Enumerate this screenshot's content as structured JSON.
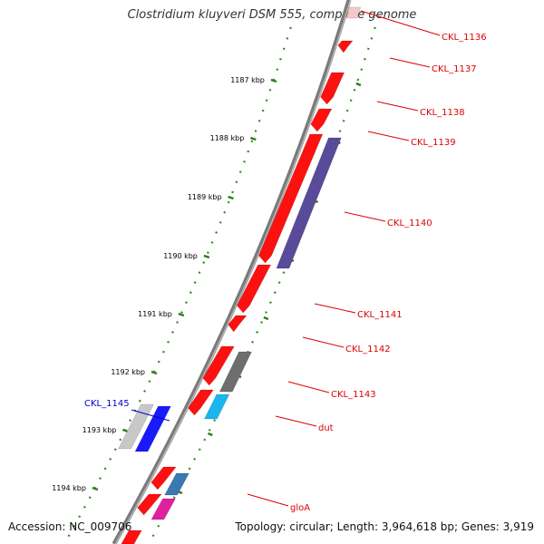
{
  "title": "Clostridium kluyveri DSM 555, complete genome",
  "accession": "Accession: NC_009706",
  "topology": "Topology: circular; Length: 3,964,618 bp; Genes: 3,919",
  "colors": {
    "backbone": "#7a7a7a",
    "tick_major": "#2e7d1e",
    "tick_minor": "#2e8b1e",
    "forward_gene": "#ff1010",
    "forward_label": "#dd0000",
    "reverse_label": "#0000cc"
  },
  "ticks": [
    {
      "label": "1187 kbp"
    },
    {
      "label": "1188 kbp"
    },
    {
      "label": "1189 kbp"
    },
    {
      "label": "1190 kbp"
    },
    {
      "label": "1191 kbp"
    },
    {
      "label": "1192 kbp"
    },
    {
      "label": "1193 kbp"
    },
    {
      "label": "1194 kbp"
    }
  ],
  "gene_labels": [
    {
      "name": "CKL_1136",
      "color": "#dd0000"
    },
    {
      "name": "CKL_1137",
      "color": "#dd0000"
    },
    {
      "name": "CKL_1138",
      "color": "#dd0000"
    },
    {
      "name": "CKL_1139",
      "color": "#dd0000"
    },
    {
      "name": "CKL_1140",
      "color": "#dd0000"
    },
    {
      "name": "CKL_1141",
      "color": "#dd0000"
    },
    {
      "name": "CKL_1142",
      "color": "#dd0000"
    },
    {
      "name": "CKL_1143",
      "color": "#dd0000"
    },
    {
      "name": "dut",
      "color": "#dd0000"
    },
    {
      "name": "gloA",
      "color": "#dd0000"
    },
    {
      "name": "CKL_1145",
      "color": "#0000cc"
    }
  ],
  "feature_colors": {
    "cds_forward": "#ff1010",
    "cog_purple": "#5a4a9a",
    "cog_gray": "#6e6e6e",
    "cog_cyan": "#1ab6ef",
    "cog_steelblue": "#3a78b0",
    "cog_magenta": "#e020a0",
    "cds_reverse": "#1a1aff",
    "cog_lightgray": "#c8c8c8"
  }
}
